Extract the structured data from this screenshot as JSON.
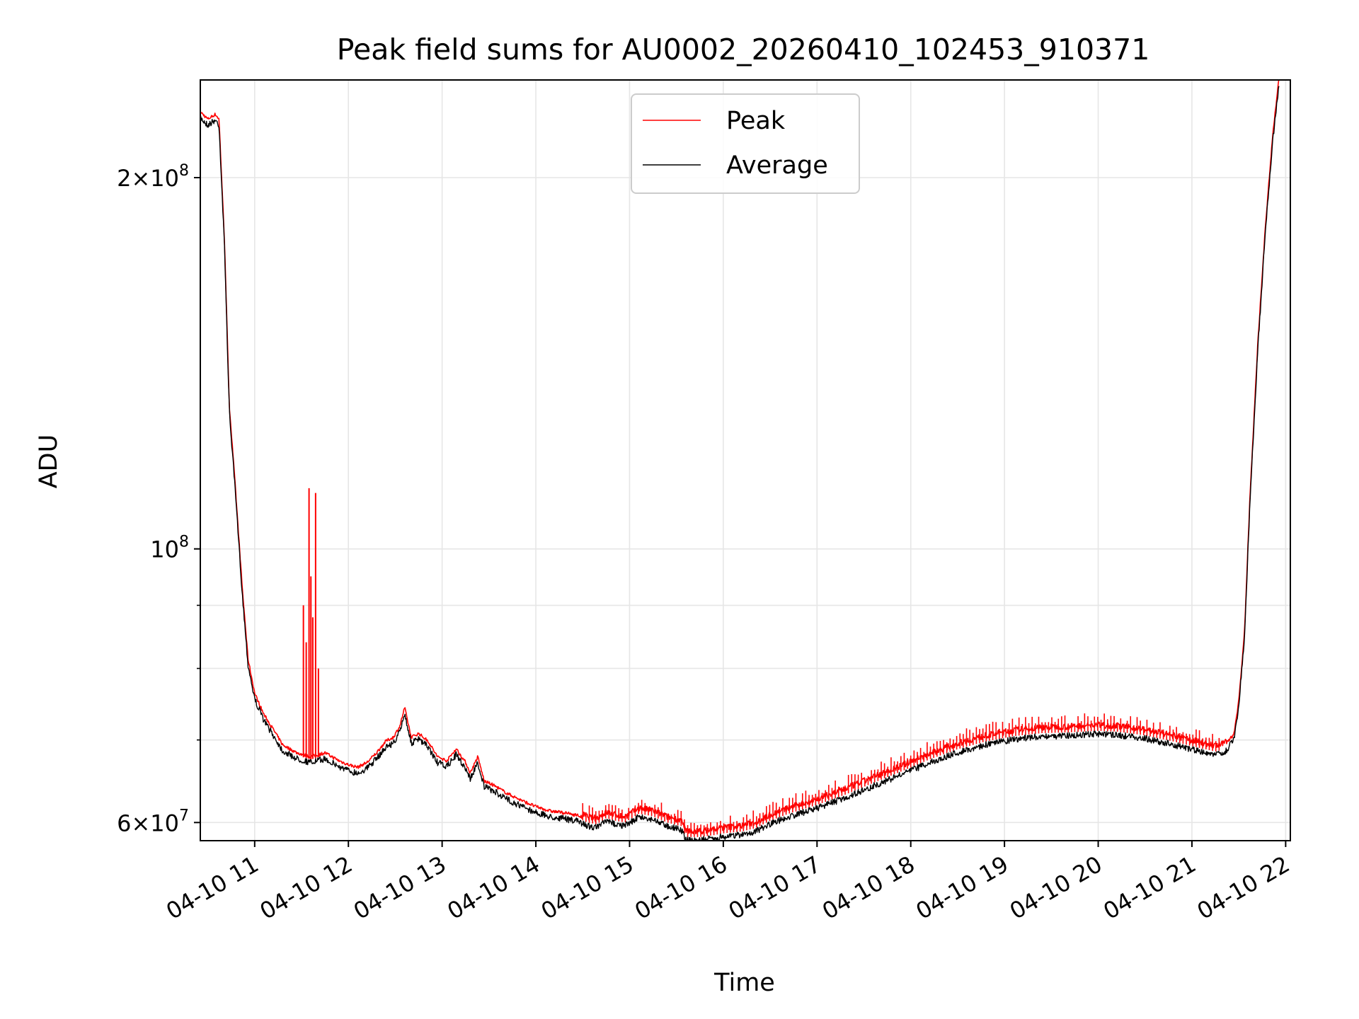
{
  "chart_data": {
    "type": "line",
    "title": "Peak field sums for AU0002_20260410_102453_910371",
    "xlabel": "Time",
    "ylabel": "ADU",
    "yscale": "log",
    "x_range_hours": [
      10.42,
      22.05
    ],
    "ylim": [
      58000000,
      240000000
    ],
    "grid": true,
    "legend_position": "upper center",
    "colors": {
      "peak": "#ff0000",
      "average": "#000000",
      "grid": "#e6e6e6"
    },
    "x_ticks": [
      {
        "hour": 11,
        "label": "04-10 11"
      },
      {
        "hour": 12,
        "label": "04-10 12"
      },
      {
        "hour": 13,
        "label": "04-10 13"
      },
      {
        "hour": 14,
        "label": "04-10 14"
      },
      {
        "hour": 15,
        "label": "04-10 15"
      },
      {
        "hour": 16,
        "label": "04-10 16"
      },
      {
        "hour": 17,
        "label": "04-10 17"
      },
      {
        "hour": 18,
        "label": "04-10 18"
      },
      {
        "hour": 19,
        "label": "04-10 19"
      },
      {
        "hour": 20,
        "label": "04-10 20"
      },
      {
        "hour": 21,
        "label": "04-10 21"
      },
      {
        "hour": 22,
        "label": "04-10 22"
      }
    ],
    "y_major_ticks": [
      {
        "value": 60000000,
        "mant": "6",
        "times": "×10",
        "exp": "7"
      },
      {
        "value": 100000000,
        "mant": "",
        "times": "10",
        "exp": "8"
      },
      {
        "value": 200000000,
        "mant": "2",
        "times": "×10",
        "exp": "8"
      }
    ],
    "y_minor_ticks": [
      70000000,
      80000000,
      90000000
    ],
    "series": [
      {
        "name": "Peak",
        "key": "peak",
        "spikes": [
          {
            "t": 11.52,
            "v": 90000000
          },
          {
            "t": 11.55,
            "v": 84000000
          },
          {
            "t": 11.58,
            "v": 112000000
          },
          {
            "t": 11.6,
            "v": 95000000
          },
          {
            "t": 11.62,
            "v": 88000000
          },
          {
            "t": 11.65,
            "v": 111000000
          },
          {
            "t": 11.68,
            "v": 80000000
          }
        ]
      },
      {
        "name": "Average",
        "key": "average",
        "points": [
          [
            10.42,
            225000000
          ],
          [
            10.5,
            222000000
          ],
          [
            10.58,
            224000000
          ],
          [
            10.62,
            222000000
          ],
          [
            10.68,
            175000000
          ],
          [
            10.73,
            130000000
          ],
          [
            10.8,
            110000000
          ],
          [
            10.87,
            92000000
          ],
          [
            10.93,
            81000000
          ],
          [
            11.0,
            76000000
          ],
          [
            11.1,
            73000000
          ],
          [
            11.2,
            71000000
          ],
          [
            11.3,
            69000000
          ],
          [
            11.45,
            68000000
          ],
          [
            11.6,
            67500000
          ],
          [
            11.75,
            68000000
          ],
          [
            11.9,
            67000000
          ],
          [
            12.0,
            66500000
          ],
          [
            12.1,
            66200000
          ],
          [
            12.2,
            66800000
          ],
          [
            12.3,
            68000000
          ],
          [
            12.4,
            69500000
          ],
          [
            12.48,
            70000000
          ],
          [
            12.55,
            71500000
          ],
          [
            12.6,
            74000000
          ],
          [
            12.67,
            70000000
          ],
          [
            12.75,
            70500000
          ],
          [
            12.85,
            69500000
          ],
          [
            12.95,
            67500000
          ],
          [
            13.05,
            67000000
          ],
          [
            13.15,
            68500000
          ],
          [
            13.25,
            66800000
          ],
          [
            13.3,
            65500000
          ],
          [
            13.38,
            67500000
          ],
          [
            13.45,
            64500000
          ],
          [
            13.55,
            64000000
          ],
          [
            13.7,
            63000000
          ],
          [
            13.85,
            62200000
          ],
          [
            14.0,
            61500000
          ],
          [
            14.15,
            61000000
          ],
          [
            14.3,
            60800000
          ],
          [
            14.45,
            60500000
          ],
          [
            14.55,
            60000000
          ],
          [
            14.65,
            59800000
          ],
          [
            14.75,
            60500000
          ],
          [
            14.85,
            60200000
          ],
          [
            14.95,
            60000000
          ],
          [
            15.1,
            61000000
          ],
          [
            15.25,
            60700000
          ],
          [
            15.4,
            60000000
          ],
          [
            15.55,
            59600000
          ],
          [
            15.6,
            58400000
          ],
          [
            15.75,
            58400000
          ],
          [
            15.9,
            58600000
          ],
          [
            16.0,
            58800000
          ],
          [
            16.2,
            59000000
          ],
          [
            16.35,
            59400000
          ],
          [
            16.5,
            60200000
          ],
          [
            16.7,
            61000000
          ],
          [
            17.0,
            62000000
          ],
          [
            17.3,
            63200000
          ],
          [
            17.6,
            64600000
          ],
          [
            17.9,
            66000000
          ],
          [
            18.2,
            67500000
          ],
          [
            18.5,
            68800000
          ],
          [
            18.8,
            69800000
          ],
          [
            19.1,
            70500000
          ],
          [
            19.4,
            70900000
          ],
          [
            19.7,
            71000000
          ],
          [
            20.0,
            71200000
          ],
          [
            20.2,
            71100000
          ],
          [
            20.5,
            70600000
          ],
          [
            20.8,
            69800000
          ],
          [
            21.0,
            69200000
          ],
          [
            21.25,
            68500000
          ],
          [
            21.35,
            68800000
          ],
          [
            21.45,
            70500000
          ],
          [
            21.5,
            75000000
          ],
          [
            21.56,
            85000000
          ],
          [
            21.62,
            110000000
          ],
          [
            21.7,
            145000000
          ],
          [
            21.78,
            180000000
          ],
          [
            21.86,
            215000000
          ],
          [
            21.93,
            240000000
          ]
        ]
      }
    ]
  }
}
